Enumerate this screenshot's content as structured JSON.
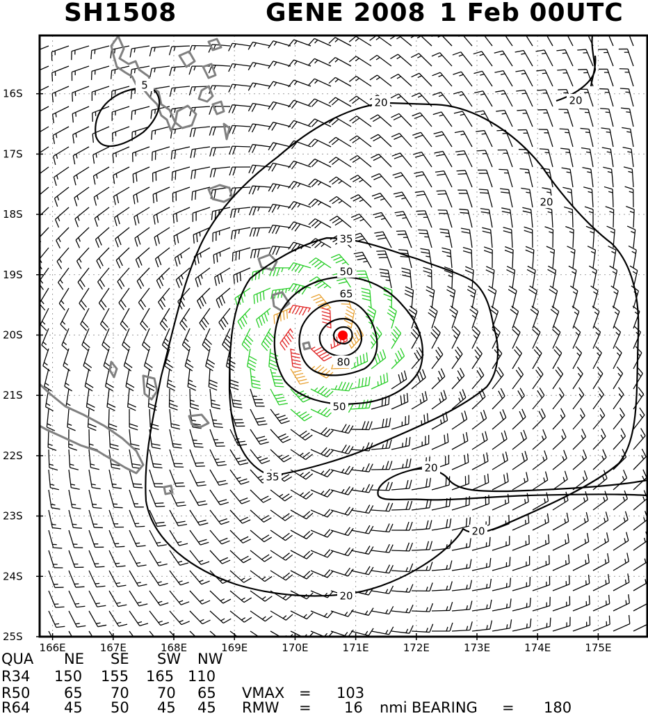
{
  "header": {
    "storm_id": "SH1508",
    "storm_name_year": "GENE 2008",
    "date_time": "1 Feb 00UTC"
  },
  "map": {
    "lat_labels": [
      "16S",
      "17S",
      "18S",
      "19S",
      "20S",
      "21S",
      "22S",
      "23S",
      "24S",
      "25S"
    ],
    "lon_labels": [
      "166E",
      "167E",
      "168E",
      "169E",
      "170E",
      "171E",
      "172E",
      "173E",
      "174E",
      "175E"
    ],
    "contour_labels": [
      "5",
      "20",
      "20",
      "20",
      "20",
      "20",
      "20",
      "35",
      "35",
      "50",
      "50",
      "65",
      "80"
    ],
    "center": {
      "lon": 170.35,
      "lat": -20.0
    },
    "colors": {
      "coast": "#808080",
      "contour": "#000000",
      "barb_lt34": "#000000",
      "barb_34": "#22cc22",
      "barb_50": "#e8a030",
      "barb_64": "#e02020",
      "center": "#ff0000",
      "grid": "#9a9a9a"
    }
  },
  "radii_table": {
    "headers": [
      "QUA",
      "NE",
      "SE",
      "SW",
      "NW"
    ],
    "rows": [
      {
        "label": "R34",
        "values": [
          "150",
          "155",
          "165",
          "110"
        ]
      },
      {
        "label": "R50",
        "values": [
          "65",
          "70",
          "70",
          "65"
        ]
      },
      {
        "label": "R64",
        "values": [
          "45",
          "50",
          "45",
          "45"
        ]
      }
    ]
  },
  "stats": {
    "vmax_label": "VMAX",
    "vmax_eq": "=",
    "vmax_value": "103",
    "rmw_label": "RMW",
    "rmw_eq": "=",
    "rmw_value": "16",
    "rmw_unit": "nmi",
    "bearing_label": "BEARING",
    "bearing_eq": "=",
    "bearing_value": "180"
  }
}
